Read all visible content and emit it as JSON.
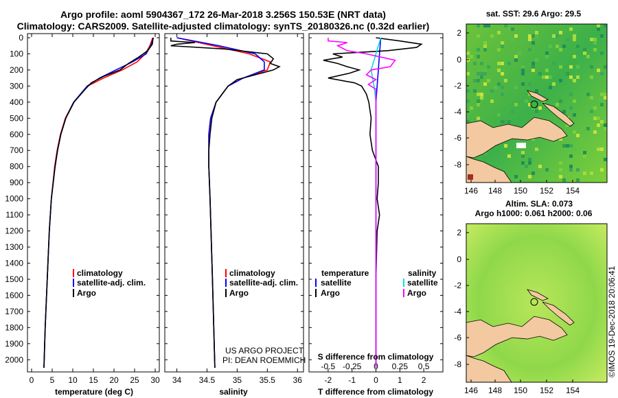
{
  "header": {
    "line1": "Argo profile: aoml 5904367_172 26-Mar-2018 3.256S 150.53E (NRT data)",
    "line2": "Climatology: CARS2009. Satellite-adjusted climatology: synTS_20180326.nc (0.32d earlier)"
  },
  "map_top": {
    "title": "sat. SST: 29.6 Argo: 29.5",
    "xticks": [
      "146",
      "148",
      "150",
      "152",
      "154"
    ],
    "yticks": [
      "2",
      "0",
      "-2",
      "-4",
      "-6",
      "-8"
    ]
  },
  "map_bottom": {
    "title1": "Altim. SLA: 0.073",
    "title2": "Argo h1000: 0.061 h2000: 0.06",
    "xticks": [
      "146",
      "148",
      "150",
      "152",
      "154"
    ],
    "yticks": [
      "2",
      "0",
      "-2",
      "-4",
      "-6",
      "-8"
    ]
  },
  "credit": {
    "line1": "US ARGO PROJECT",
    "line2": "PI: DEAN ROEMMICH",
    "stamp": "©IMOS 19-Dec-2018 20:06:41"
  },
  "colors": {
    "climatology": "#ff0000",
    "satellite": "#0000ff",
    "argo": "#000000",
    "sat_salinity": "#00e0e0",
    "argo_salinity_diff": "#ff00ff",
    "land": "#f2c9a0"
  },
  "chart_data": [
    {
      "type": "line",
      "id": "temperature",
      "xlabel": "temperature (deg C)",
      "ylabel": "",
      "xlim": [
        -1,
        31
      ],
      "ylim": [
        2070,
        0
      ],
      "xticks": [
        0,
        5,
        10,
        15,
        20,
        25,
        30
      ],
      "yticks": [
        0,
        100,
        200,
        300,
        400,
        500,
        600,
        700,
        800,
        900,
        1000,
        1100,
        1200,
        1300,
        1400,
        1500,
        1600,
        1700,
        1800,
        1900,
        2000
      ],
      "legend": [
        "climatology",
        "satellite-adj. clim.",
        "Argo"
      ],
      "series": [
        {
          "name": "climatology",
          "depth": [
            0,
            50,
            100,
            150,
            200,
            250,
            300,
            400,
            500,
            600,
            700,
            800,
            1000,
            1200,
            1500,
            1800,
            2050
          ],
          "values": [
            29.4,
            28.7,
            27.6,
            25.6,
            22.0,
            17.5,
            13.6,
            10.2,
            8.2,
            7.0,
            6.2,
            5.6,
            4.8,
            4.3,
            3.8,
            3.3,
            3.0
          ]
        },
        {
          "name": "satellite-adj. clim.",
          "depth": [
            0,
            50,
            100,
            150,
            200,
            250,
            300,
            400,
            500,
            600,
            700,
            800,
            1000,
            1200,
            1500,
            1800,
            2050
          ],
          "values": [
            29.6,
            28.9,
            27.8,
            24.5,
            20.5,
            16.5,
            13.5,
            10.2,
            8.3,
            7.1,
            6.3,
            5.7,
            4.8,
            4.3,
            3.8,
            3.3,
            3.0
          ]
        },
        {
          "name": "Argo",
          "depth": [
            0,
            40,
            80,
            120,
            160,
            200,
            240,
            280,
            320,
            400,
            500,
            600,
            700,
            800,
            1000,
            1200,
            1500,
            1800,
            2050
          ],
          "values": [
            29.5,
            29.3,
            28.2,
            26.0,
            23.5,
            21.5,
            17.5,
            14.5,
            13.0,
            10.3,
            8.3,
            7.1,
            6.3,
            5.7,
            4.8,
            4.3,
            3.8,
            3.3,
            3.0
          ]
        }
      ]
    },
    {
      "type": "line",
      "id": "salinity",
      "xlabel": "salinity",
      "ylabel": "",
      "xlim": [
        33.8,
        36.1
      ],
      "ylim": [
        2070,
        0
      ],
      "xticks": [
        34,
        34.5,
        35,
        35.5,
        36
      ],
      "legend": [
        "climatology",
        "satellite-adj. clim.",
        "Argo"
      ],
      "series": [
        {
          "name": "climatology",
          "depth": [
            0,
            50,
            100,
            150,
            200,
            250,
            300,
            400,
            500,
            600,
            800,
            1000,
            1500,
            2050
          ],
          "values": [
            34.0,
            34.6,
            35.2,
            35.55,
            35.5,
            35.1,
            34.85,
            34.65,
            34.56,
            34.53,
            34.53,
            34.55,
            34.59,
            34.63
          ]
        },
        {
          "name": "satellite-adj. clim.",
          "depth": [
            0,
            50,
            100,
            150,
            200,
            250,
            300,
            400,
            500,
            600,
            800,
            1000,
            1500,
            2050
          ],
          "values": [
            34.0,
            34.7,
            35.3,
            35.45,
            35.45,
            35.1,
            34.85,
            34.65,
            34.56,
            34.53,
            34.53,
            34.55,
            34.59,
            34.63
          ]
        },
        {
          "name": "Argo",
          "depth": [
            0,
            20,
            30,
            40,
            50,
            70,
            100,
            130,
            160,
            180,
            200,
            230,
            260,
            300,
            400,
            500,
            600,
            700,
            800,
            1000,
            1500,
            2050
          ],
          "values": [
            33.9,
            33.9,
            34.3,
            34.0,
            33.9,
            34.8,
            35.5,
            35.6,
            35.55,
            35.7,
            35.6,
            35.3,
            35.0,
            34.85,
            34.65,
            34.58,
            34.55,
            34.53,
            34.53,
            34.55,
            34.59,
            34.63
          ]
        }
      ]
    },
    {
      "type": "line",
      "id": "difference",
      "xlabel": "T difference from climatology",
      "xlabel_top": "S difference from climatology",
      "ylabel": "",
      "xlim": [
        -2.8,
        2.8
      ],
      "ylim": [
        2070,
        0
      ],
      "xticks": [
        -2,
        -1,
        0,
        1,
        2
      ],
      "xticks_s_values": [
        -0.5,
        -0.25,
        0,
        0.25,
        0.5
      ],
      "xticks_s": [
        "-0.5",
        "-0.25",
        "0",
        "0.25",
        "0.5"
      ],
      "legend_temp_heading": "temperature",
      "legend_sal_heading": "salinity",
      "legend_temp": [
        "satellite",
        "Argo"
      ],
      "legend_sal": [
        "satellite",
        "Argo"
      ],
      "series": [
        {
          "name": "T satellite",
          "depth": [
            0,
            100,
            200,
            300,
            400,
            600,
            2050
          ],
          "values": [
            0.2,
            0.15,
            0.1,
            0.05,
            0.0,
            0.0,
            0.0
          ]
        },
        {
          "name": "T Argo",
          "depth": [
            0,
            20,
            40,
            60,
            80,
            100,
            120,
            140,
            160,
            180,
            200,
            220,
            250,
            280,
            300,
            350,
            400,
            450,
            500,
            600,
            700,
            800,
            900,
            1000,
            1100,
            1200,
            1500,
            2050
          ],
          "values": [
            0.0,
            1.0,
            1.9,
            1.7,
            0.5,
            -1.8,
            -1.4,
            -2.2,
            -1.6,
            -1.2,
            -0.7,
            -1.1,
            -2.0,
            -0.9,
            -0.6,
            -0.4,
            -0.3,
            -0.25,
            -0.2,
            -0.25,
            -0.15,
            0.1,
            0.1,
            0.05,
            0.15,
            0.05,
            0.0,
            0.0
          ]
        },
        {
          "name": "S satellite",
          "depth": [
            0,
            100,
            200,
            300,
            400,
            600,
            2050
          ],
          "values": [
            0.05,
            0.0,
            -0.05,
            -0.02,
            0.0,
            0.0,
            0.0
          ]
        },
        {
          "name": "S Argo",
          "depth": [
            0,
            20,
            30,
            50,
            80,
            100,
            140,
            180,
            200,
            230,
            260,
            290,
            320,
            400,
            600,
            2050
          ],
          "values": [
            -0.5,
            -0.5,
            -0.3,
            -0.4,
            -0.3,
            -0.1,
            0.2,
            0.15,
            -0.05,
            -0.1,
            0.0,
            -0.08,
            0.0,
            0.0,
            0.0,
            0.0
          ]
        }
      ]
    }
  ]
}
